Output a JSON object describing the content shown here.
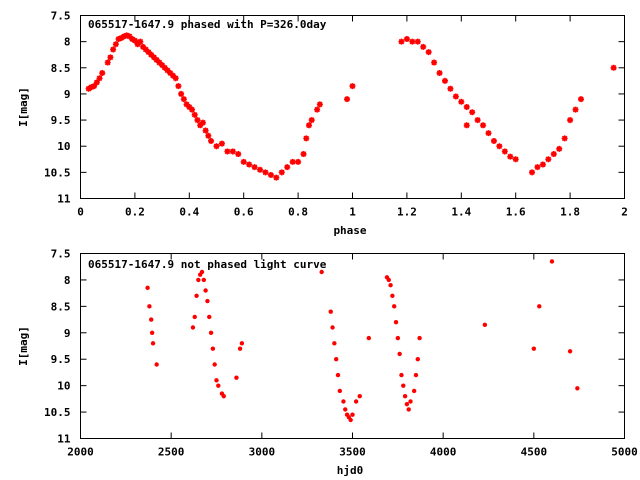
{
  "chart_data": [
    {
      "type": "scatter",
      "title": "065517-1647.9 phased with P=326.0day",
      "xlabel": "phase",
      "ylabel": "I[mag]",
      "xlim": [
        0,
        2
      ],
      "ylim": [
        11,
        7.5
      ],
      "y_inverted": true,
      "grid": false,
      "xticks": [
        0,
        0.2,
        0.4,
        0.6,
        0.8,
        1,
        1.2,
        1.4,
        1.6,
        1.8,
        2
      ],
      "xtick_labels": [
        "0",
        "0.2",
        "0.4",
        "0.6",
        "0.8",
        "1",
        "1.2",
        "1.4",
        "1.6",
        "1.8",
        "2"
      ],
      "yticks": [
        7.5,
        8,
        8.5,
        9,
        9.5,
        10,
        10.5,
        11
      ],
      "ytick_labels": [
        "7.5",
        "8",
        "8.5",
        "9",
        "9.5",
        "10",
        "10.5",
        "11"
      ],
      "marker": "star",
      "color": "#ff0000",
      "points": [
        [
          0.03,
          8.9
        ],
        [
          0.04,
          8.87
        ],
        [
          0.05,
          8.85
        ],
        [
          0.06,
          8.78
        ],
        [
          0.07,
          8.7
        ],
        [
          0.08,
          8.6
        ],
        [
          0.1,
          8.4
        ],
        [
          0.11,
          8.3
        ],
        [
          0.12,
          8.15
        ],
        [
          0.13,
          8.05
        ],
        [
          0.14,
          7.95
        ],
        [
          0.15,
          7.93
        ],
        [
          0.16,
          7.9
        ],
        [
          0.17,
          7.88
        ],
        [
          0.18,
          7.9
        ],
        [
          0.19,
          7.95
        ],
        [
          0.2,
          7.98
        ],
        [
          0.21,
          8.05
        ],
        [
          0.22,
          8.0
        ],
        [
          0.23,
          8.1
        ],
        [
          0.24,
          8.15
        ],
        [
          0.25,
          8.2
        ],
        [
          0.26,
          8.25
        ],
        [
          0.27,
          8.3
        ],
        [
          0.28,
          8.35
        ],
        [
          0.29,
          8.4
        ],
        [
          0.3,
          8.45
        ],
        [
          0.31,
          8.5
        ],
        [
          0.32,
          8.55
        ],
        [
          0.33,
          8.6
        ],
        [
          0.34,
          8.65
        ],
        [
          0.35,
          8.7
        ],
        [
          0.36,
          8.85
        ],
        [
          0.37,
          9.0
        ],
        [
          0.38,
          9.1
        ],
        [
          0.39,
          9.2
        ],
        [
          0.4,
          9.25
        ],
        [
          0.41,
          9.3
        ],
        [
          0.42,
          9.4
        ],
        [
          0.43,
          9.5
        ],
        [
          0.44,
          9.6
        ],
        [
          0.45,
          9.55
        ],
        [
          0.46,
          9.7
        ],
        [
          0.47,
          9.8
        ],
        [
          0.48,
          9.9
        ],
        [
          0.5,
          10.0
        ],
        [
          0.52,
          9.95
        ],
        [
          0.54,
          10.1
        ],
        [
          0.56,
          10.1
        ],
        [
          0.58,
          10.15
        ],
        [
          0.6,
          10.3
        ],
        [
          0.62,
          10.35
        ],
        [
          0.64,
          10.4
        ],
        [
          0.66,
          10.45
        ],
        [
          0.68,
          10.5
        ],
        [
          0.7,
          10.55
        ],
        [
          0.72,
          10.6
        ],
        [
          0.74,
          10.5
        ],
        [
          0.76,
          10.4
        ],
        [
          0.78,
          10.3
        ],
        [
          0.8,
          10.3
        ],
        [
          0.82,
          10.15
        ],
        [
          0.83,
          9.85
        ],
        [
          0.84,
          9.6
        ],
        [
          0.85,
          9.5
        ],
        [
          0.87,
          9.3
        ],
        [
          0.88,
          9.2
        ],
        [
          0.98,
          9.1
        ],
        [
          1.0,
          8.85
        ],
        [
          1.18,
          8.0
        ],
        [
          1.2,
          7.95
        ],
        [
          1.22,
          8.0
        ],
        [
          1.24,
          8.0
        ],
        [
          1.26,
          8.1
        ],
        [
          1.28,
          8.2
        ],
        [
          1.3,
          8.4
        ],
        [
          1.32,
          8.6
        ],
        [
          1.34,
          8.75
        ],
        [
          1.36,
          8.9
        ],
        [
          1.38,
          9.05
        ],
        [
          1.4,
          9.15
        ],
        [
          1.42,
          9.25
        ],
        [
          1.44,
          9.35
        ],
        [
          1.46,
          9.5
        ],
        [
          1.48,
          9.6
        ],
        [
          1.5,
          9.75
        ],
        [
          1.52,
          9.9
        ],
        [
          1.54,
          10.0
        ],
        [
          1.56,
          10.1
        ],
        [
          1.58,
          10.2
        ],
        [
          1.6,
          10.25
        ],
        [
          1.42,
          9.6
        ],
        [
          1.66,
          10.5
        ],
        [
          1.68,
          10.4
        ],
        [
          1.7,
          10.35
        ],
        [
          1.72,
          10.25
        ],
        [
          1.74,
          10.15
        ],
        [
          1.76,
          10.05
        ],
        [
          1.78,
          9.85
        ],
        [
          1.8,
          9.5
        ],
        [
          1.82,
          9.3
        ],
        [
          1.84,
          9.1
        ],
        [
          1.96,
          8.5
        ]
      ]
    },
    {
      "type": "scatter",
      "title": "065517-1647.9 not phased light curve",
      "xlabel": "hjd0",
      "ylabel": "I[mag]",
      "xlim": [
        2000,
        5000
      ],
      "ylim": [
        11,
        7.5
      ],
      "y_inverted": true,
      "grid": false,
      "xticks": [
        2000,
        2500,
        3000,
        3500,
        4000,
        4500,
        5000
      ],
      "xtick_labels": [
        "2000",
        "2500",
        "3000",
        "3500",
        "4000",
        "4500",
        "5000"
      ],
      "yticks": [
        7.5,
        8,
        8.5,
        9,
        9.5,
        10,
        10.5,
        11
      ],
      "ytick_labels": [
        "7.5",
        "8",
        "8.5",
        "9",
        "9.5",
        "10",
        "10.5",
        "11"
      ],
      "marker": "dot",
      "color": "#ff0000",
      "points": [
        [
          2370,
          8.15
        ],
        [
          2380,
          8.5
        ],
        [
          2390,
          8.75
        ],
        [
          2395,
          9.0
        ],
        [
          2400,
          9.2
        ],
        [
          2420,
          9.6
        ],
        [
          2620,
          8.9
        ],
        [
          2630,
          8.7
        ],
        [
          2640,
          8.3
        ],
        [
          2650,
          8.0
        ],
        [
          2660,
          7.9
        ],
        [
          2670,
          7.85
        ],
        [
          2680,
          8.0
        ],
        [
          2690,
          8.2
        ],
        [
          2700,
          8.4
        ],
        [
          2710,
          8.7
        ],
        [
          2720,
          9.0
        ],
        [
          2730,
          9.3
        ],
        [
          2740,
          9.6
        ],
        [
          2750,
          9.9
        ],
        [
          2760,
          10.0
        ],
        [
          2780,
          10.15
        ],
        [
          2790,
          10.2
        ],
        [
          2860,
          9.85
        ],
        [
          2880,
          9.3
        ],
        [
          2890,
          9.2
        ],
        [
          3330,
          7.85
        ],
        [
          3380,
          8.6
        ],
        [
          3390,
          8.9
        ],
        [
          3400,
          9.2
        ],
        [
          3410,
          9.5
        ],
        [
          3420,
          9.8
        ],
        [
          3430,
          10.1
        ],
        [
          3450,
          10.3
        ],
        [
          3460,
          10.45
        ],
        [
          3470,
          10.55
        ],
        [
          3480,
          10.6
        ],
        [
          3490,
          10.65
        ],
        [
          3500,
          10.55
        ],
        [
          3520,
          10.3
        ],
        [
          3540,
          10.2
        ],
        [
          3590,
          9.1
        ],
        [
          3690,
          7.95
        ],
        [
          3700,
          8.0
        ],
        [
          3710,
          8.1
        ],
        [
          3720,
          8.3
        ],
        [
          3730,
          8.5
        ],
        [
          3740,
          8.8
        ],
        [
          3750,
          9.1
        ],
        [
          3760,
          9.4
        ],
        [
          3770,
          9.8
        ],
        [
          3780,
          10.0
        ],
        [
          3790,
          10.2
        ],
        [
          3800,
          10.35
        ],
        [
          3810,
          10.45
        ],
        [
          3820,
          10.3
        ],
        [
          3840,
          10.1
        ],
        [
          3850,
          9.8
        ],
        [
          3860,
          9.5
        ],
        [
          3870,
          9.1
        ],
        [
          4230,
          8.85
        ],
        [
          4500,
          9.3
        ],
        [
          4530,
          8.5
        ],
        [
          4600,
          7.65
        ],
        [
          4700,
          9.35
        ],
        [
          4740,
          10.05
        ]
      ]
    }
  ]
}
